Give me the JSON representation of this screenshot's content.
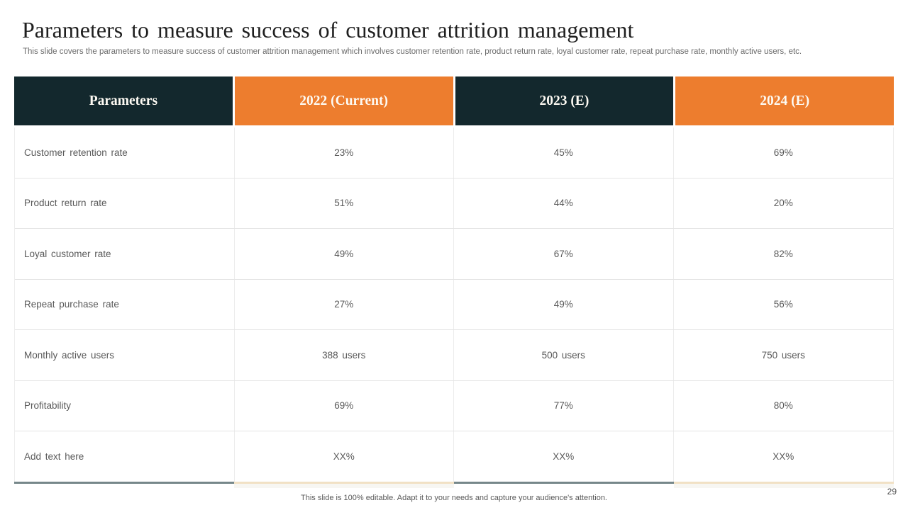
{
  "slide": {
    "title": "Parameters to measure success of customer attrition management",
    "subtitle": "This slide covers the parameters to measure success of customer attrition management which involves customer retention rate, product return rate, loyal customer rate, repeat purchase rate, monthly active users, etc.",
    "footer_note": "This slide is 100% editable. Adapt it to your needs and capture your audience's attention.",
    "page_number": "29"
  },
  "table": {
    "columns": [
      "Parameters",
      "2022 (Current)",
      "2023 (E)",
      "2024 (E)"
    ],
    "rows": [
      {
        "parameter": "Customer retention rate",
        "values": [
          "23%",
          "45%",
          "69%"
        ]
      },
      {
        "parameter": "Product return rate",
        "values": [
          "51%",
          "44%",
          "20%"
        ]
      },
      {
        "parameter": "Loyal customer rate",
        "values": [
          "49%",
          "67%",
          "82%"
        ]
      },
      {
        "parameter": "Repeat purchase rate",
        "values": [
          "27%",
          "49%",
          "56%"
        ]
      },
      {
        "parameter": "Monthly active users",
        "values": [
          "388 users",
          "500 users",
          "750 users"
        ]
      },
      {
        "parameter": "Profitability",
        "values": [
          "69%",
          "77%",
          "80%"
        ]
      },
      {
        "parameter": "Add text here",
        "values": [
          "XX%",
          "XX%",
          "XX%"
        ]
      }
    ]
  },
  "colors": {
    "title_text": "#1f1f1f",
    "subtitle_text": "#6b6b6b",
    "header_dark": "#13282d",
    "header_orange": "#ed7d2e",
    "header_text": "#fdfaf3",
    "body_text": "#595959",
    "row_border": "#e4e4e4",
    "bottom_border_dark": "#76878a",
    "bottom_border_tan": "#f1e1c5"
  }
}
